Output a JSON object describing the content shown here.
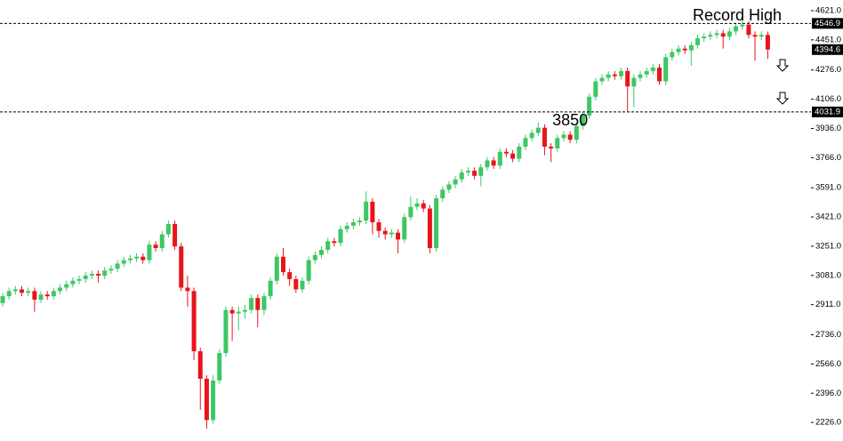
{
  "chart_data": {
    "type": "candlestick",
    "up_color": "#3cc864",
    "down_color": "#e8141c",
    "ylim": [
      2118,
      4683
    ],
    "yticks": [
      {
        "value": 4621,
        "label": "4621.0"
      },
      {
        "value": 4451,
        "label": "4451.0"
      },
      {
        "value": 4276,
        "label": "4276.0"
      },
      {
        "value": 4106,
        "label": "4106.0"
      },
      {
        "value": 3936,
        "label": "3936.0"
      },
      {
        "value": 3766,
        "label": "3766.0"
      },
      {
        "value": 3591,
        "label": "3591.0"
      },
      {
        "value": 3421,
        "label": "3421.0"
      },
      {
        "value": 3251,
        "label": "3251.0"
      },
      {
        "value": 3081,
        "label": "3081.0"
      },
      {
        "value": 2911,
        "label": "2911.0"
      },
      {
        "value": 2736,
        "label": "2736.0"
      },
      {
        "value": 2566,
        "label": "2566.0"
      },
      {
        "value": 2396,
        "label": "2396.0"
      },
      {
        "value": 2226,
        "label": "2226.0"
      }
    ],
    "levels": [
      4546.9,
      4031.9
    ],
    "annotations": [
      "Record High"
    ],
    "open": [
      2920,
      2960,
      2990,
      3000,
      2980,
      2990,
      2940,
      2970,
      2960,
      2990,
      3010,
      3030,
      3050,
      3060,
      3080,
      3090,
      3080,
      3110,
      3120,
      3150,
      3170,
      3180,
      3190,
      3170,
      3260,
      3240,
      3320,
      3380,
      3250,
      3010,
      2990,
      2640,
      2480,
      2240,
      2470,
      2630,
      2880,
      2860,
      2870,
      2880,
      2950,
      2880,
      2960,
      3050,
      3190,
      3100,
      3060,
      3000,
      3050,
      3170,
      3200,
      3230,
      3280,
      3270,
      3350,
      3370,
      3390,
      3400,
      3510,
      3390,
      3340,
      3320,
      3330,
      3290,
      3420,
      3480,
      3500,
      3470,
      3240,
      3530,
      3580,
      3610,
      3640,
      3680,
      3690,
      3660,
      3710,
      3750,
      3720,
      3800,
      3790,
      3760,
      3830,
      3880,
      3910,
      3940,
      3830,
      3820,
      3880,
      3900,
      3870,
      3950,
      4010,
      4120,
      4210,
      4230,
      4250,
      4240,
      4270,
      4180,
      4230,
      4250,
      4270,
      4290,
      4210,
      4350,
      4380,
      4400,
      4390,
      4420,
      4460,
      4470,
      4480,
      4490,
      4470,
      4500,
      4530,
      4540,
      4480,
      4470,
      4480
    ],
    "high": [
      2980,
      3010,
      3020,
      3020,
      3010,
      3010,
      2990,
      2990,
      3010,
      3030,
      3050,
      3070,
      3080,
      3100,
      3110,
      3110,
      3130,
      3140,
      3170,
      3190,
      3200,
      3210,
      3210,
      3280,
      3280,
      3340,
      3400,
      3400,
      3270,
      3080,
      3010,
      2660,
      2500,
      2500,
      2650,
      2900,
      2900,
      2900,
      2910,
      2970,
      2970,
      2980,
      3070,
      3210,
      3240,
      3120,
      3080,
      3070,
      3190,
      3220,
      3250,
      3300,
      3300,
      3370,
      3390,
      3410,
      3420,
      3570,
      3530,
      3410,
      3360,
      3350,
      3350,
      3440,
      3540,
      3530,
      3520,
      3490,
      3550,
      3600,
      3630,
      3660,
      3700,
      3710,
      3710,
      3730,
      3770,
      3770,
      3820,
      3820,
      3810,
      3850,
      3900,
      3930,
      3970,
      3960,
      3850,
      3900,
      3920,
      3920,
      3970,
      4030,
      4140,
      4230,
      4250,
      4270,
      4270,
      4290,
      4290,
      4250,
      4270,
      4290,
      4310,
      4310,
      4370,
      4400,
      4420,
      4420,
      4440,
      4480,
      4490,
      4500,
      4510,
      4510,
      4520,
      4550,
      4570,
      4560,
      4500,
      4500,
      4500
    ],
    "low": [
      2900,
      2940,
      2970,
      2960,
      2960,
      2870,
      2920,
      2940,
      2940,
      2970,
      2990,
      3010,
      3030,
      3040,
      3060,
      3040,
      3060,
      3090,
      3100,
      3130,
      3150,
      3160,
      3150,
      3150,
      3220,
      3220,
      3300,
      3230,
      2990,
      2900,
      2590,
      2300,
      2190,
      2220,
      2450,
      2610,
      2700,
      2760,
      2830,
      2860,
      2780,
      2850,
      2940,
      3030,
      3080,
      3020,
      2980,
      2980,
      3030,
      3150,
      3180,
      3210,
      3250,
      3250,
      3330,
      3350,
      3370,
      3380,
      3320,
      3300,
      3290,
      3300,
      3210,
      3270,
      3400,
      3460,
      3450,
      3210,
      3220,
      3510,
      3560,
      3590,
      3620,
      3660,
      3640,
      3600,
      3690,
      3700,
      3700,
      3770,
      3740,
      3740,
      3810,
      3860,
      3890,
      3780,
      3740,
      3800,
      3860,
      3850,
      3850,
      3930,
      3990,
      4100,
      4190,
      4210,
      4220,
      4220,
      4036,
      4060,
      4210,
      4230,
      4250,
      4190,
      4190,
      4330,
      4360,
      4370,
      4300,
      4400,
      4440,
      4450,
      4460,
      4400,
      4450,
      4480,
      4510,
      4460,
      4330,
      4450,
      4340
    ],
    "close": [
      2960,
      2990,
      3000,
      2980,
      2990,
      2940,
      2970,
      2960,
      2990,
      3010,
      3030,
      3050,
      3060,
      3080,
      3090,
      3080,
      3110,
      3120,
      3150,
      3170,
      3180,
      3190,
      3170,
      3260,
      3240,
      3320,
      3380,
      3250,
      3010,
      2990,
      2640,
      2480,
      2240,
      2470,
      2630,
      2880,
      2860,
      2870,
      2880,
      2950,
      2880,
      2960,
      3050,
      3190,
      3100,
      3060,
      3000,
      3050,
      3170,
      3200,
      3230,
      3280,
      3270,
      3350,
      3370,
      3390,
      3400,
      3510,
      3390,
      3340,
      3320,
      3330,
      3290,
      3420,
      3480,
      3500,
      3470,
      3240,
      3530,
      3580,
      3610,
      3640,
      3680,
      3690,
      3660,
      3710,
      3750,
      3720,
      3800,
      3790,
      3760,
      3830,
      3880,
      3910,
      3940,
      3830,
      3820,
      3880,
      3900,
      3870,
      3950,
      4010,
      4120,
      4210,
      4230,
      4250,
      4240,
      4270,
      4180,
      4230,
      4250,
      4270,
      4290,
      4210,
      4350,
      4380,
      4400,
      4390,
      4420,
      4460,
      4470,
      4480,
      4490,
      4470,
      4500,
      4530,
      4540,
      4480,
      4470,
      4480,
      4394.6
    ]
  }
}
